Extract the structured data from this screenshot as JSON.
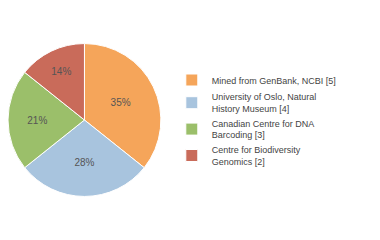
{
  "chart_data": {
    "type": "pie",
    "categories": [
      "Mined from GenBank, NCBI [5]",
      "University of Oslo, Natural\nHistory Museum [4]",
      "Canadian Centre for DNA\nBarcoding [3]",
      "Centre for Biodiversity\nGenomics [2]"
    ],
    "values": [
      35,
      28,
      21,
      14
    ],
    "value_labels": [
      "35%",
      "28%",
      "21%",
      "14%"
    ],
    "colors": [
      "#F5A55A",
      "#A8C4DE",
      "#9BBF6A",
      "#C96B5A"
    ],
    "data_labels": true,
    "legend": "right"
  }
}
